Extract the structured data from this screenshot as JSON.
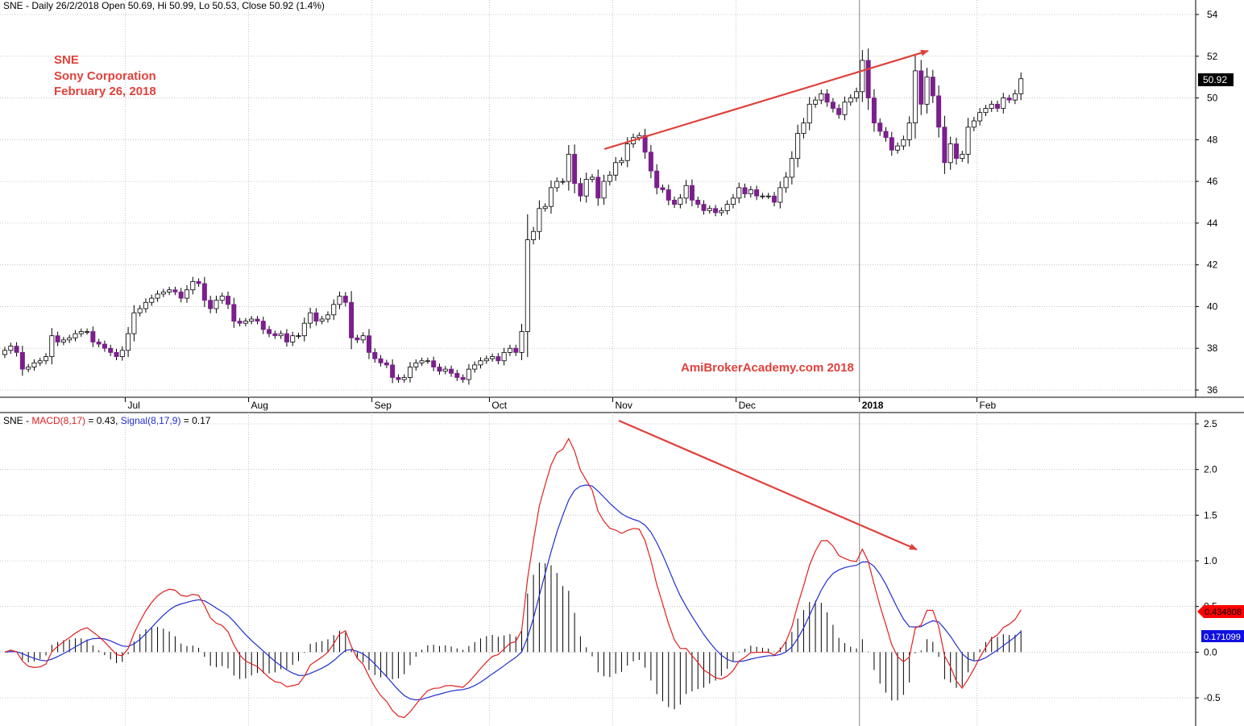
{
  "colors": {
    "bear_body": "#7b1f8c",
    "bull_body": "#ffffff",
    "candle_outline": "#000000",
    "macd_line": "#e02020",
    "signal_line": "#1f2fcf",
    "histogram": "#000000",
    "annotation": "#e0413b",
    "grid": "#b9b9b9",
    "last_price_box": "#000000",
    "macd_box": "#ff0000",
    "signal_box": "#1010e0"
  },
  "price_panel": {
    "header_prefix": "SNE - Daily 26/2/2018 Open 50.69, Hi 50.99, Lo 50.53, Close 50.92 (1.4%)",
    "labels": {
      "line1": "SNE",
      "line2": "Sony Corporation",
      "line3": "February 26, 2018",
      "watermark": "AmiBrokerAcademy.com  2018"
    },
    "last_price_tag": "50.92"
  },
  "macd_panel": {
    "header": {
      "prefix": "SNE - ",
      "macd_label": "MACD(8,17)",
      "macd_value": " = 0.43, ",
      "signal_label": "Signal(8,17,9)",
      "signal_value": " = 0.17"
    },
    "macd_tag": "0.434808",
    "signal_tag": "0.171099"
  },
  "chart_data": [
    {
      "type": "candlestick",
      "title": "SNE - Daily 26/2/2018 Open 50.69, Hi 50.99, Lo 50.53, Close 50.92 (1.4%)",
      "x_tick_labels": [
        "Jul",
        "Aug",
        "Sep",
        "Oct",
        "Nov",
        "Dec",
        "2018",
        "Feb"
      ],
      "y_ticks": [
        36,
        38,
        40,
        42,
        44,
        46,
        48,
        50,
        52,
        54
      ],
      "ylim": [
        35.5,
        54.5
      ],
      "grid": true,
      "series": [
        {
          "name": "SNE",
          "close": [
            37.9,
            38.1,
            37.8,
            37,
            37.1,
            37.3,
            37.4,
            37.6,
            38.6,
            38.3,
            38.4,
            38.5,
            38.7,
            38.8,
            38.8,
            38.3,
            38.2,
            38,
            37.8,
            37.6,
            37.9,
            38.7,
            39.7,
            39.9,
            40.2,
            40.4,
            40.6,
            40.7,
            40.8,
            40.7,
            40.4,
            40.8,
            41.2,
            41.1,
            40.3,
            39.9,
            40.3,
            40.5,
            40.1,
            39.3,
            39.2,
            39.3,
            39.4,
            39.3,
            38.9,
            38.7,
            38.6,
            38.7,
            38.3,
            38.6,
            38.6,
            39.2,
            39.7,
            39.3,
            39.4,
            39.6,
            40.1,
            40.5,
            40.2,
            38.5,
            38.4,
            38.6,
            37.8,
            37.5,
            37.3,
            37.2,
            36.6,
            36.5,
            36.6,
            37.1,
            37.3,
            37.4,
            37.4,
            37.1,
            36.9,
            37,
            36.8,
            36.6,
            36.5,
            37,
            37.2,
            37.4,
            37.5,
            37.6,
            37.4,
            37.8,
            38,
            37.8,
            38.8,
            43.2,
            43.6,
            44.7,
            44.8,
            45.7,
            46,
            46,
            47.3,
            45.9,
            45.3,
            46.1,
            46.2,
            45.2,
            46,
            46.3,
            46.9,
            47,
            47.8,
            48.1,
            48.2,
            47.4,
            46.5,
            45.7,
            45.6,
            45.1,
            44.9,
            45.2,
            45.8,
            45.1,
            44.9,
            44.6,
            44.7,
            44.5,
            44.6,
            44.9,
            45.2,
            45.7,
            45.4,
            45.6,
            45.3,
            45.3,
            45.3,
            45,
            45.7,
            46.2,
            47.1,
            48.3,
            48.8,
            49.7,
            49.9,
            50.2,
            49.8,
            49.5,
            49.2,
            49.8,
            50,
            50.3,
            51.8,
            50,
            48.8,
            48.4,
            48.1,
            47.5,
            47.7,
            48,
            48.8,
            51.3,
            49.7,
            51,
            50.1,
            48.6,
            46.9,
            47.8,
            47.1,
            47.3,
            48.6,
            48.9,
            49.3,
            49.5,
            49.7,
            49.5,
            50,
            49.9,
            50.2,
            50.92
          ]
        }
      ]
    },
    {
      "type": "line",
      "title": "SNE - MACD(8,17) = 0.43, Signal(8,17,9) = 0.17",
      "y_ticks": [
        -0.5,
        0.0,
        0.5,
        1.0,
        1.5,
        2.0,
        2.5
      ],
      "ylim": [
        -0.75,
        2.6
      ],
      "grid": true,
      "series": [
        {
          "name": "MACD(8,17)"
        },
        {
          "name": "Signal(8,17,9)"
        },
        {
          "name": "Histogram"
        }
      ]
    }
  ]
}
